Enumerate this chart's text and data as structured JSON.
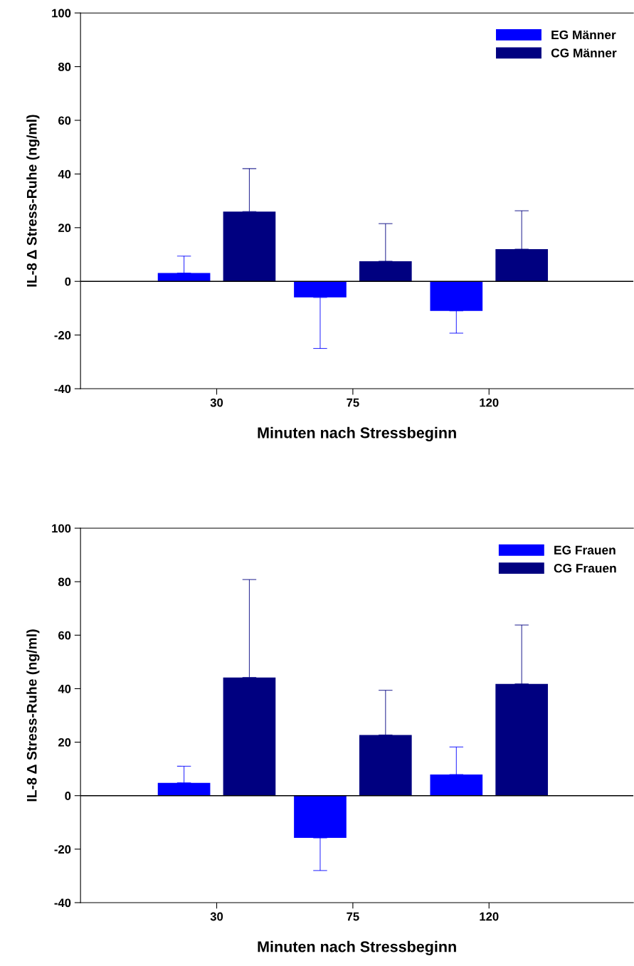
{
  "chart_data": [
    {
      "type": "bar",
      "categories": [
        "30",
        "75",
        "120"
      ],
      "xlabel": "Minuten nach Stressbeginn",
      "ylabel": "IL-8 Δ Stress-Ruhe (ng/ml)",
      "ylim": [
        -40,
        100
      ],
      "yticks": [
        -40,
        -20,
        0,
        20,
        40,
        60,
        80,
        100
      ],
      "legend": "top right",
      "grid": false,
      "ref_lines": [
        {
          "axis": "y",
          "value": 0
        }
      ],
      "series": [
        {
          "name": "EG Männer",
          "color": "#0000ff",
          "values": [
            3.1,
            -6,
            -11
          ],
          "errors": [
            [
              3.1,
              9.4
            ],
            [
              -25,
              -6
            ],
            [
              -19.3,
              -11
            ]
          ]
        },
        {
          "name": "CG Männer",
          "color": "#000080",
          "values": [
            26,
            7.5,
            12
          ],
          "errors": [
            [
              26,
              42
            ],
            [
              7.5,
              21.5
            ],
            [
              12,
              26.3
            ]
          ]
        }
      ]
    },
    {
      "type": "bar",
      "categories": [
        "30",
        "75",
        "120"
      ],
      "xlabel": "Minuten nach Stressbeginn",
      "ylabel": "IL-8 Δ Stress-Ruhe (ng/ml)",
      "ylim": [
        -40,
        100
      ],
      "yticks": [
        -40,
        -20,
        0,
        20,
        40,
        60,
        80,
        100
      ],
      "legend": "top right",
      "grid": false,
      "ref_lines": [
        {
          "axis": "y",
          "value": 0
        }
      ],
      "series": [
        {
          "name": "EG Frauen",
          "color": "#0000ff",
          "values": [
            4.8,
            -15.8,
            7.9
          ],
          "errors": [
            [
              4.8,
              11
            ],
            [
              -28,
              -15.8
            ],
            [
              7.9,
              18.2
            ]
          ]
        },
        {
          "name": "CG Frauen",
          "color": "#000080",
          "values": [
            44.2,
            22.7,
            41.8
          ],
          "errors": [
            [
              44.2,
              80.8
            ],
            [
              22.7,
              39.4
            ],
            [
              41.8,
              63.8
            ]
          ]
        }
      ]
    }
  ]
}
